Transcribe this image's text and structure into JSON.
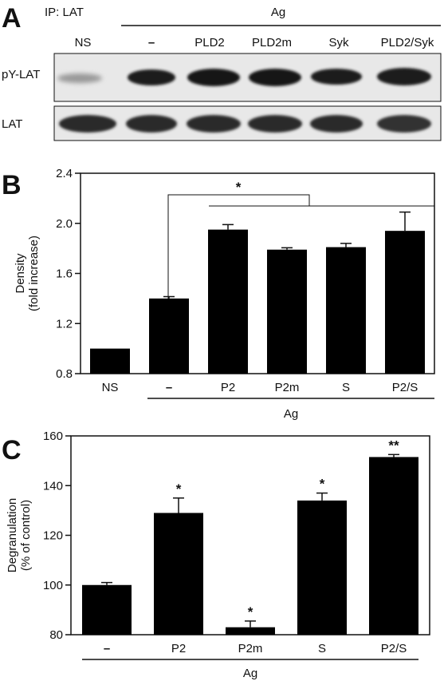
{
  "panels": {
    "a": {
      "letter": "A",
      "ip_label": "IP: LAT",
      "ag_label": "Ag",
      "lane_labels": [
        "NS",
        "–",
        "PLD2",
        "PLD2m",
        "Syk",
        "PLD2/Syk"
      ],
      "blot_labels": [
        "pY-LAT",
        "LAT"
      ]
    },
    "b": {
      "letter": "B",
      "ag_label": "Ag",
      "significance_marker": "*"
    },
    "c": {
      "letter": "C",
      "ag_label": "Ag"
    }
  },
  "chart_data": [
    {
      "panel": "B",
      "type": "bar",
      "categories": [
        "NS",
        "–",
        "P2",
        "P2m",
        "S",
        "P2/S"
      ],
      "values": [
        1.0,
        1.4,
        1.95,
        1.79,
        1.81,
        1.94
      ],
      "errors": [
        0.0,
        0.015,
        0.04,
        0.015,
        0.03,
        0.15
      ],
      "significance": [
        "",
        "",
        "",
        "",
        "",
        ""
      ],
      "ylabel": "Density\n(fold increase)",
      "ylim": [
        0.8,
        2.4
      ],
      "yticks": [
        0.8,
        1.2,
        1.6,
        2.0,
        2.4
      ],
      "ytick_labels": [
        "0.8",
        "1.2",
        "1.6",
        "2.0",
        "2.4"
      ],
      "bar_color": "#000000",
      "grid": false
    },
    {
      "panel": "C",
      "type": "bar",
      "categories": [
        "–",
        "P2",
        "P2m",
        "S",
        "P2/S"
      ],
      "values": [
        100,
        129,
        83,
        134,
        151.5
      ],
      "errors": [
        1,
        6,
        2.5,
        3,
        1
      ],
      "significance": [
        "",
        "*",
        "*",
        "*",
        "**"
      ],
      "ylabel": "Degranulation\n(% of control)",
      "ylim": [
        80,
        160
      ],
      "yticks": [
        80,
        100,
        120,
        140,
        160
      ],
      "ytick_labels": [
        "80",
        "100",
        "120",
        "140",
        "160"
      ],
      "bar_color": "#000000",
      "grid": false
    }
  ]
}
